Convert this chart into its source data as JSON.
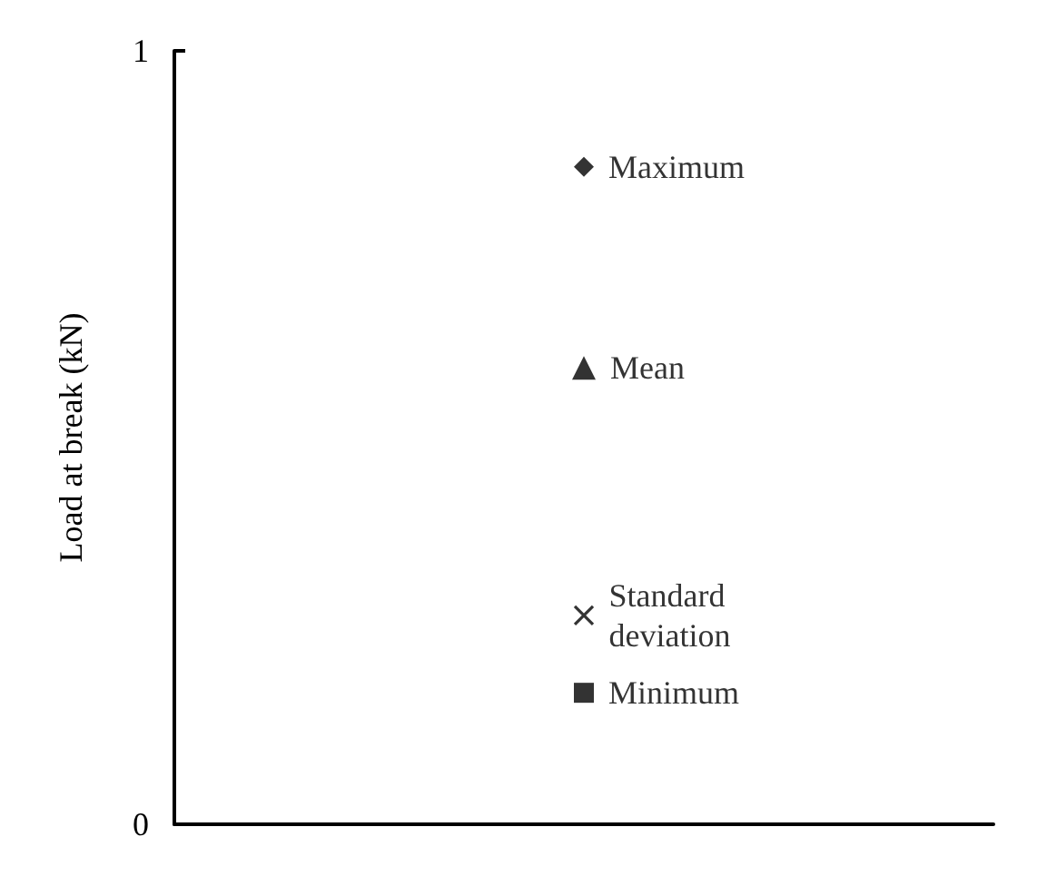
{
  "chart_data": {
    "type": "scatter",
    "ylabel": "Load at break (kN)",
    "categories": [
      null
    ],
    "ylim": [
      0,
      1
    ],
    "yticks": [
      0,
      1
    ],
    "grid": false,
    "legend": false,
    "series": [
      {
        "name": "Maximum",
        "color": "#000000",
        "marker": "diamond",
        "values": [
          0.85
        ]
      },
      {
        "name": "Mean",
        "color": "#000000",
        "marker": "triangle",
        "values": [
          0.59
        ]
      },
      {
        "name": "Standard deviation",
        "color": "#000000",
        "marker": "cross",
        "values": [
          0.27
        ]
      },
      {
        "name": "Minimum",
        "color": "#000000",
        "marker": "square",
        "values": [
          0.17
        ]
      }
    ]
  }
}
